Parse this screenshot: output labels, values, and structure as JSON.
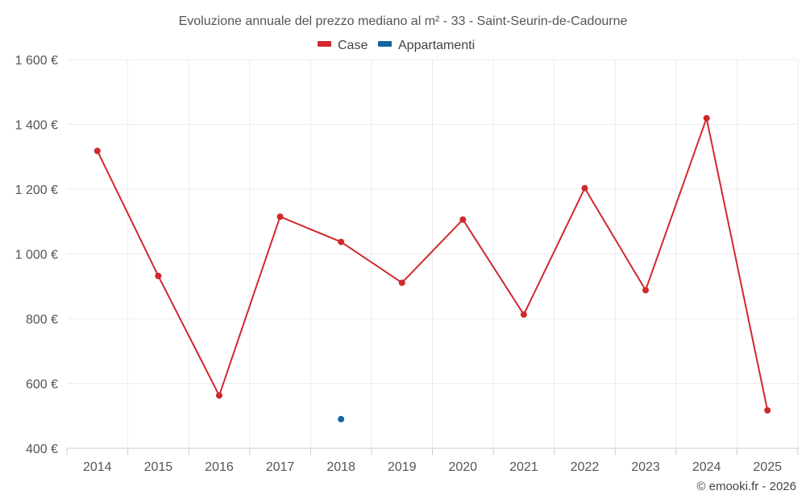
{
  "chart_data": {
    "type": "line",
    "title": "Evoluzione annuale del prezzo mediano al m² - 33 - Saint-Seurin-de-Cadourne",
    "categories": [
      "2014",
      "2015",
      "2016",
      "2017",
      "2018",
      "2019",
      "2020",
      "2021",
      "2022",
      "2023",
      "2024",
      "2025"
    ],
    "ylim": [
      400,
      1600
    ],
    "yticks": [
      400,
      600,
      800,
      1000,
      1200,
      1400,
      1600
    ],
    "ytick_labels": [
      "400 €",
      "600 €",
      "800 €",
      "1 000 €",
      "1 200 €",
      "1 400 €",
      "1 600 €"
    ],
    "grid": true,
    "legend_position": "top-center",
    "series": [
      {
        "name": "Case",
        "color": "#d0282c",
        "values": [
          1318,
          932,
          563,
          1115,
          1037,
          911,
          1106,
          813,
          1203,
          888,
          1419,
          517
        ]
      },
      {
        "name": "Appartamenti",
        "color": "#1565a0",
        "values": [
          null,
          null,
          null,
          null,
          490,
          null,
          null,
          null,
          null,
          null,
          null,
          null
        ]
      }
    ]
  },
  "credit": "© emooki.fr - 2026"
}
